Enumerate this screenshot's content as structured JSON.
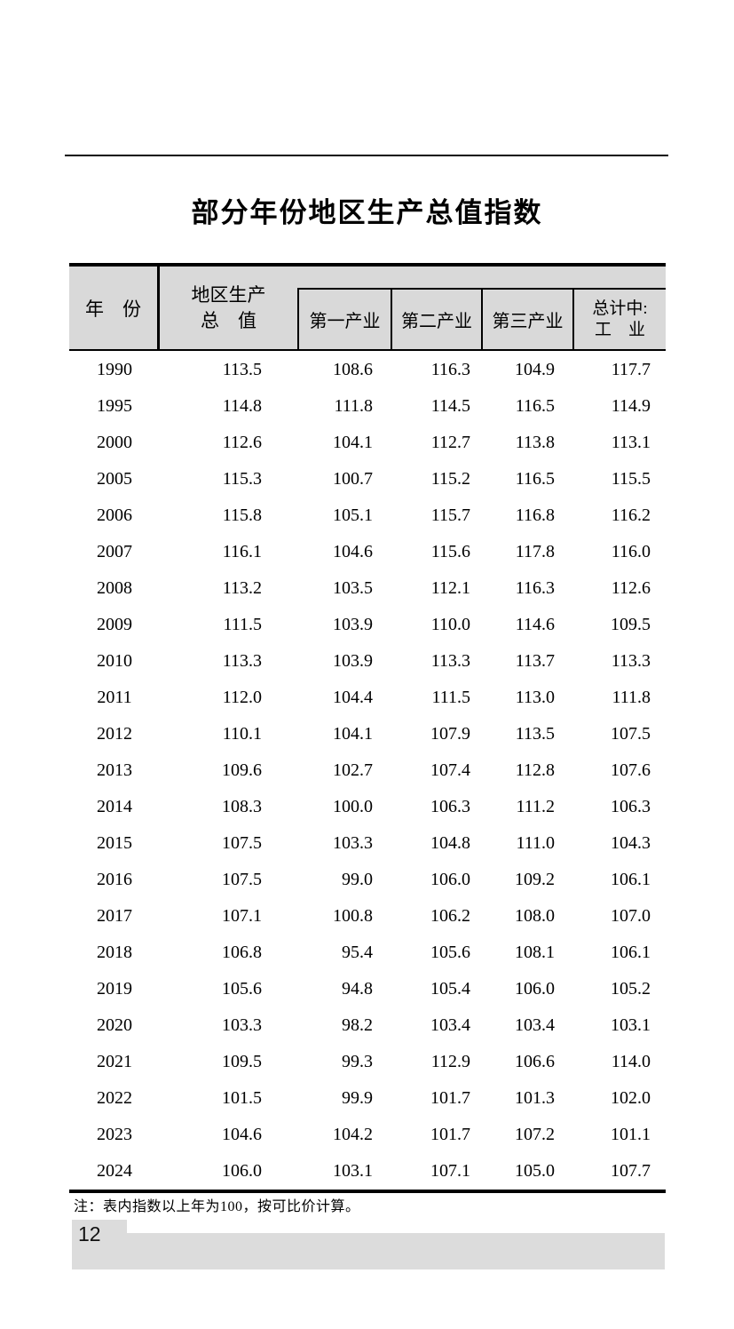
{
  "page": {
    "title": "部分年份地区生产总值指数",
    "note": "注：表内指数以上年为100，按可比价计算。",
    "page_number": "12"
  },
  "colors": {
    "header_bg": "#d9d9d9",
    "footer_bar_bg": "#dcdcdc",
    "border": "#000000"
  },
  "table": {
    "header": {
      "year_label": "年　份",
      "grp_line1": "地区生产",
      "grp_line2": "总　值",
      "industry1": "第一产业",
      "industry2": "第二产业",
      "industry3": "第三产业",
      "total_line1": "总计中:",
      "total_line2": "工　业"
    },
    "rows": [
      {
        "year": "1990",
        "values": [
          "113.5",
          "108.6",
          "116.3",
          "104.9",
          "117.7"
        ]
      },
      {
        "year": "1995",
        "values": [
          "114.8",
          "111.8",
          "114.5",
          "116.5",
          "114.9"
        ]
      },
      {
        "year": "2000",
        "values": [
          "112.6",
          "104.1",
          "112.7",
          "113.8",
          "113.1"
        ]
      },
      {
        "year": "2005",
        "values": [
          "115.3",
          "100.7",
          "115.2",
          "116.5",
          "115.5"
        ]
      },
      {
        "year": "2006",
        "values": [
          "115.8",
          "105.1",
          "115.7",
          "116.8",
          "116.2"
        ]
      },
      {
        "year": "2007",
        "values": [
          "116.1",
          "104.6",
          "115.6",
          "117.8",
          "116.0"
        ]
      },
      {
        "year": "2008",
        "values": [
          "113.2",
          "103.5",
          "112.1",
          "116.3",
          "112.6"
        ]
      },
      {
        "year": "2009",
        "values": [
          "111.5",
          "103.9",
          "110.0",
          "114.6",
          "109.5"
        ]
      },
      {
        "year": "2010",
        "values": [
          "113.3",
          "103.9",
          "113.3",
          "113.7",
          "113.3"
        ]
      },
      {
        "year": "2011",
        "values": [
          "112.0",
          "104.4",
          "111.5",
          "113.0",
          "111.8"
        ]
      },
      {
        "year": "2012",
        "values": [
          "110.1",
          "104.1",
          "107.9",
          "113.5",
          "107.5"
        ]
      },
      {
        "year": "2013",
        "values": [
          "109.6",
          "102.7",
          "107.4",
          "112.8",
          "107.6"
        ]
      },
      {
        "year": "2014",
        "values": [
          "108.3",
          "100.0",
          "106.3",
          "111.2",
          "106.3"
        ]
      },
      {
        "year": "2015",
        "values": [
          "107.5",
          "103.3",
          "104.8",
          "111.0",
          "104.3"
        ]
      },
      {
        "year": "2016",
        "values": [
          "107.5",
          "99.0",
          "106.0",
          "109.2",
          "106.1"
        ]
      },
      {
        "year": "2017",
        "values": [
          "107.1",
          "100.8",
          "106.2",
          "108.0",
          "107.0"
        ]
      },
      {
        "year": "2018",
        "values": [
          "106.8",
          "95.4",
          "105.6",
          "108.1",
          "106.1"
        ]
      },
      {
        "year": "2019",
        "values": [
          "105.6",
          "94.8",
          "105.4",
          "106.0",
          "105.2"
        ]
      },
      {
        "year": "2020",
        "values": [
          "103.3",
          "98.2",
          "103.4",
          "103.4",
          "103.1"
        ]
      },
      {
        "year": "2021",
        "values": [
          "109.5",
          "99.3",
          "112.9",
          "106.6",
          "114.0"
        ]
      },
      {
        "year": "2022",
        "values": [
          "101.5",
          "99.9",
          "101.7",
          "101.3",
          "102.0"
        ]
      },
      {
        "year": "2023",
        "values": [
          "104.6",
          "104.2",
          "101.7",
          "107.2",
          "101.1"
        ]
      },
      {
        "year": "2024",
        "values": [
          "106.0",
          "103.1",
          "107.1",
          "105.0",
          "107.7"
        ]
      }
    ]
  }
}
